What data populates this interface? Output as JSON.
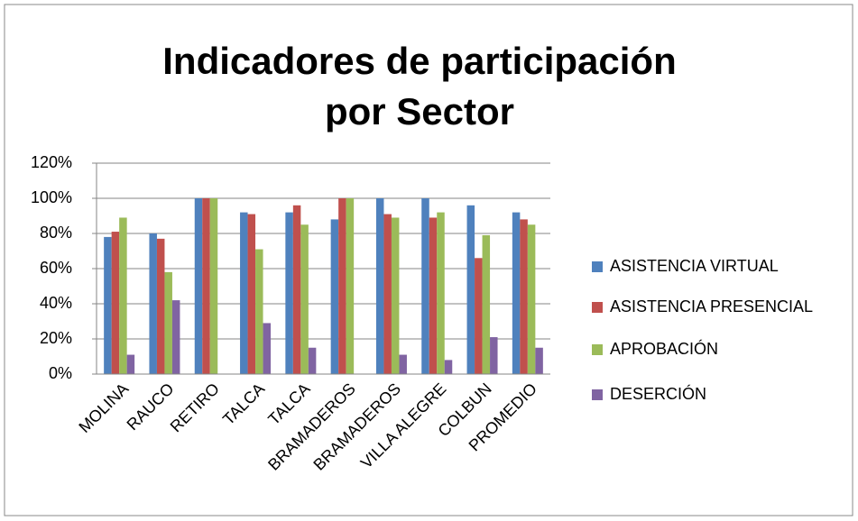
{
  "chart_data": {
    "type": "bar",
    "title": "Indicadores de participación por Sector",
    "categories": [
      "MOLINA",
      "RAUCO",
      "RETIRO",
      "TALCA",
      "TALCA",
      "BRAMADEROS",
      "BRAMADEROS",
      "VILLA ALEGRE",
      "COLBUN",
      "PROMEDIO"
    ],
    "series": [
      {
        "name": "ASISTENCIA VIRTUAL",
        "color": "#4f81bd",
        "values": [
          78,
          80,
          100,
          92,
          92,
          88,
          100,
          100,
          96,
          92
        ]
      },
      {
        "name": "ASISTENCIA PRESENCIAL",
        "color": "#c0504d",
        "values": [
          81,
          77,
          100,
          91,
          96,
          100,
          91,
          89,
          66,
          88
        ]
      },
      {
        "name": "APROBACIÓN",
        "color": "#9bbb59",
        "values": [
          89,
          58,
          100,
          71,
          85,
          100,
          89,
          92,
          79,
          85
        ]
      },
      {
        "name": "DESERCIÓN",
        "color": "#8064a2",
        "values": [
          11,
          42,
          0,
          29,
          15,
          0,
          11,
          8,
          21,
          15
        ]
      }
    ],
    "ylim": [
      0,
      120
    ],
    "yticks": [
      {
        "value": 0,
        "label": "0%"
      },
      {
        "value": 20,
        "label": "20%"
      },
      {
        "value": 40,
        "label": "40%"
      },
      {
        "value": 60,
        "label": "60%"
      },
      {
        "value": 80,
        "label": "80%"
      },
      {
        "value": 100,
        "label": "100%"
      },
      {
        "value": 120,
        "label": "120%"
      }
    ],
    "grid": true,
    "legend": "right"
  }
}
